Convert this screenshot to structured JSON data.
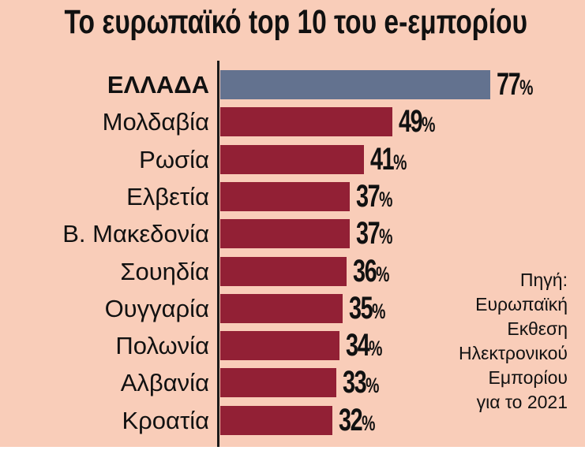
{
  "title": "Το ευρωπαϊκό top 10 του e-εμπορίου",
  "source_lines": [
    "Πηγή:",
    "Ευρωπαϊκή",
    "Εκθεση",
    "Ηλεκτρονικού",
    "Εμπορίου",
    "για το 2021"
  ],
  "colors": {
    "background": "#f9cdb9",
    "highlight_bar": "#63728f",
    "bar": "#922035",
    "axis": "#1a1a1a"
  },
  "rows": [
    {
      "label": "ΕΛΛΑΔΑ",
      "value": "77",
      "pct": "%"
    },
    {
      "label": "Μολδαβία",
      "value": "49",
      "pct": "%"
    },
    {
      "label": "Ρωσία",
      "value": "41",
      "pct": "%"
    },
    {
      "label": "Ελβετία",
      "value": "37",
      "pct": "%"
    },
    {
      "label": "Β. Μακεδονία",
      "value": "37",
      "pct": "%"
    },
    {
      "label": "Σουηδία",
      "value": "36",
      "pct": "%"
    },
    {
      "label": "Ουγγαρία",
      "value": "35",
      "pct": "%"
    },
    {
      "label": "Πολωνία",
      "value": "34",
      "pct": "%"
    },
    {
      "label": "Αλβανία",
      "value": "33",
      "pct": "%"
    },
    {
      "label": "Κροατία",
      "value": "32",
      "pct": "%"
    }
  ],
  "chart_data": {
    "type": "bar",
    "orientation": "horizontal",
    "title": "Το ευρωπαϊκό top 10 του e-εμπορίου",
    "categories": [
      "ΕΛΛΑΔΑ",
      "Μολδαβία",
      "Ρωσία",
      "Ελβετία",
      "Β. Μακεδονία",
      "Σουηδία",
      "Ουγγαρία",
      "Πολωνία",
      "Αλβανία",
      "Κροατία"
    ],
    "values": [
      77,
      49,
      41,
      37,
      37,
      36,
      35,
      34,
      33,
      32
    ],
    "unit": "%",
    "highlighted_category": "ΕΛΛΑΔΑ",
    "xlabel": "",
    "ylabel": "",
    "grid": false,
    "legend": null,
    "annotation": "Πηγή: Ευρωπαϊκή Εκθεση Ηλεκτρονικού Εμπορίου για το 2021"
  }
}
